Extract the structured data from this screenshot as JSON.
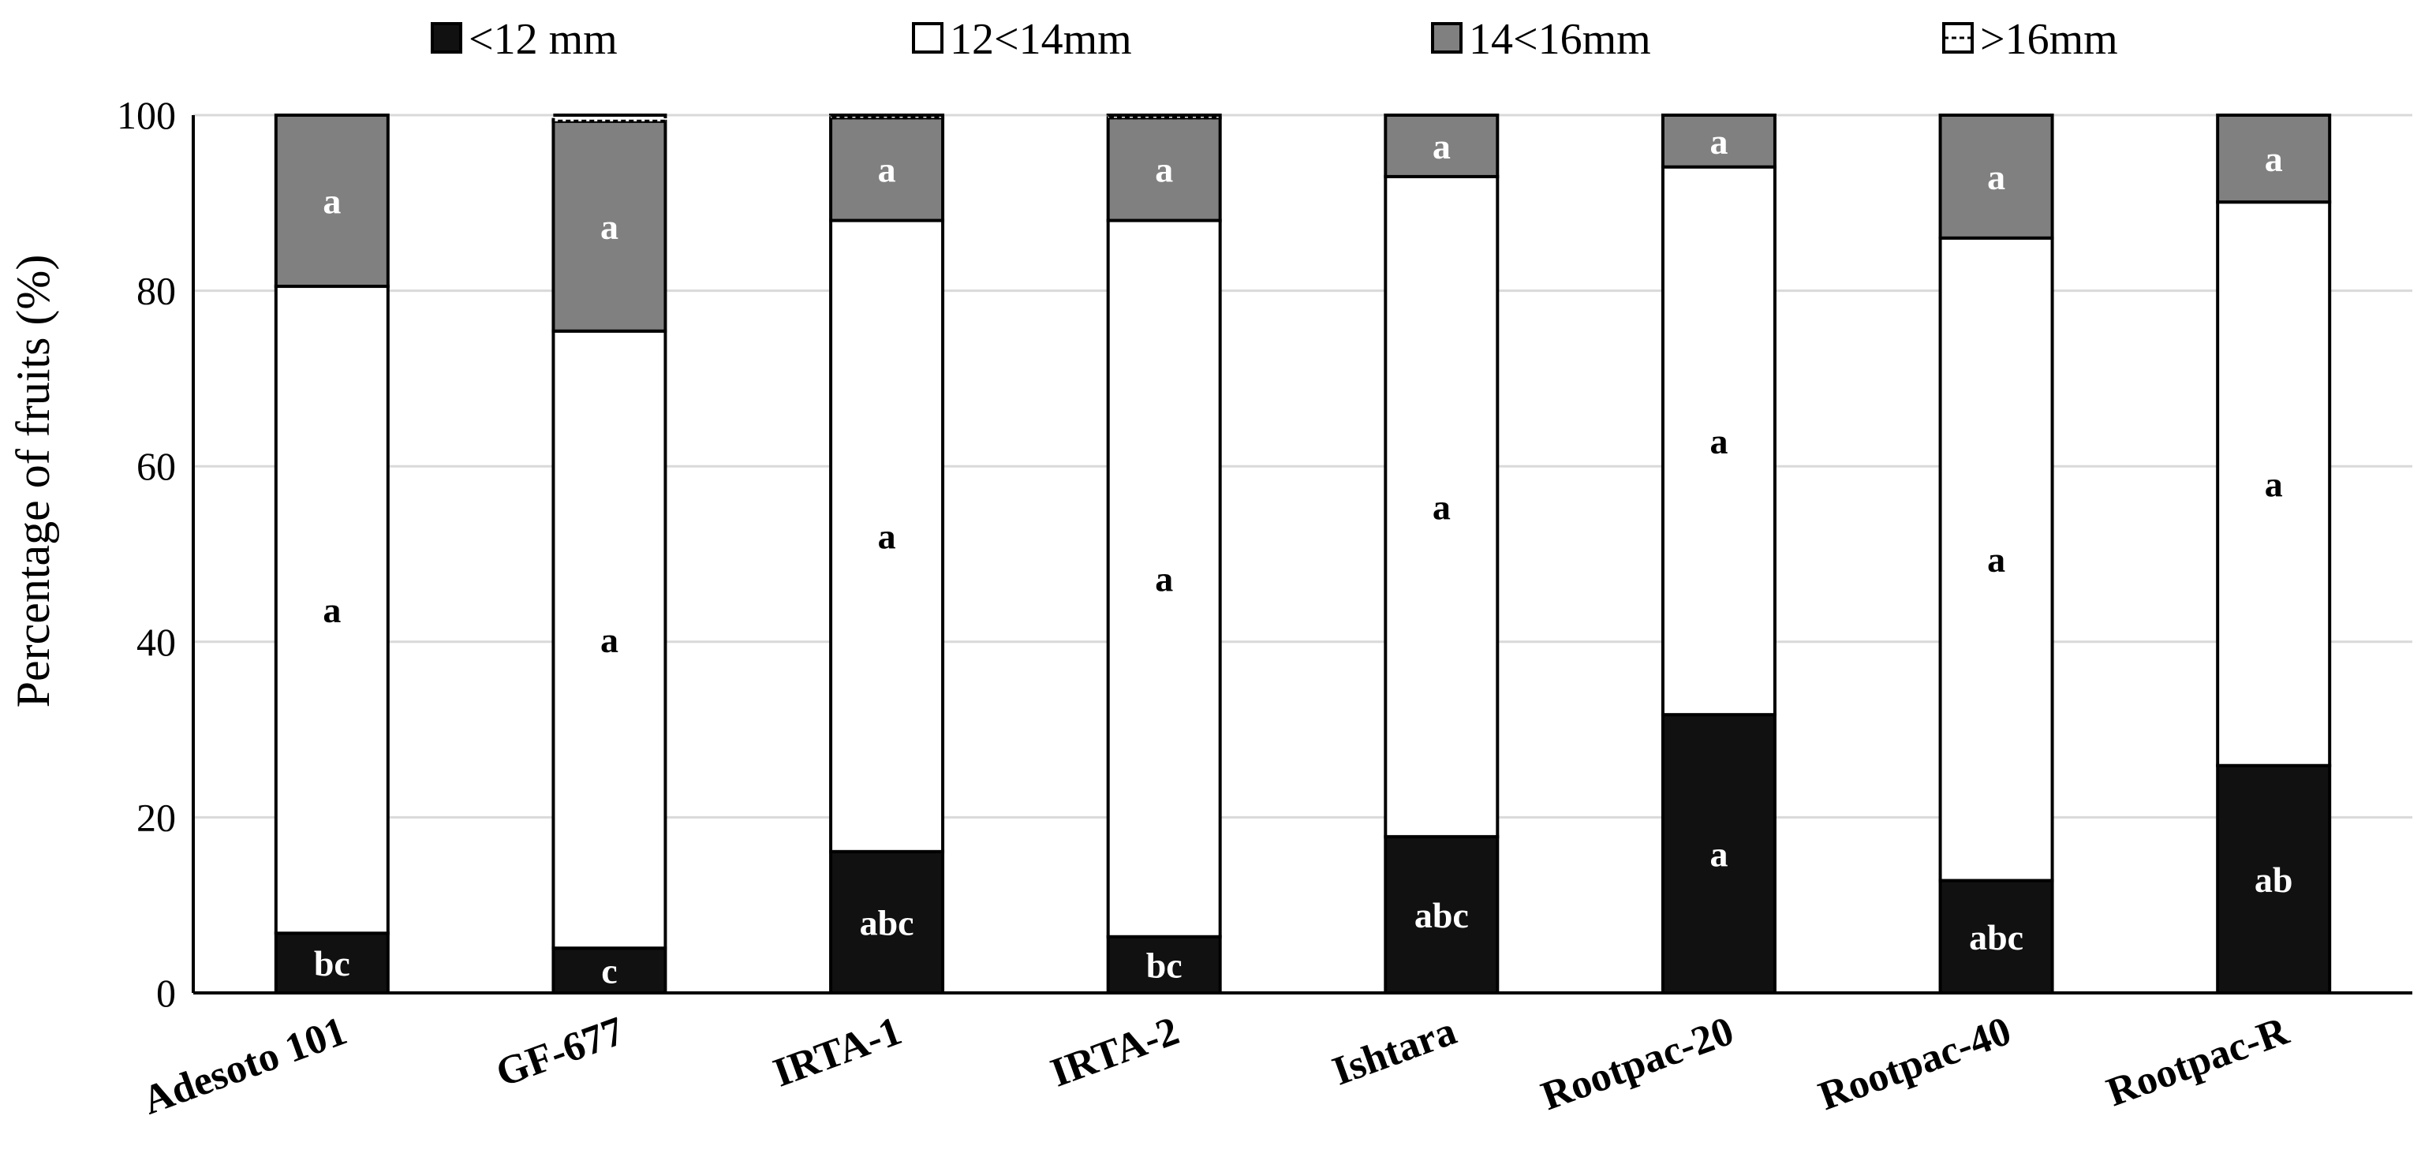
{
  "chart_data": {
    "type": "bar",
    "stacked": true,
    "ylabel": "Percentage of fruits (%)",
    "xlabel": "",
    "ylim": [
      0,
      100
    ],
    "yticks": [
      0,
      20,
      40,
      60,
      80,
      100
    ],
    "grid": true,
    "legend_position": "top",
    "categories": [
      "Adesoto 101",
      "GF-677",
      "IRTA-1",
      "IRTA-2",
      "Ishtara",
      "Rootpac-20",
      "Rootpac-40",
      "Rootpac-R"
    ],
    "series": [
      {
        "name": "<12 mm",
        "color": "#111111",
        "label_color": "#ffffff",
        "values": [
          6.8,
          5.1,
          16.1,
          6.4,
          17.8,
          31.7,
          12.8,
          25.9
        ],
        "labels": [
          "bc",
          "c",
          "abc",
          "bc",
          "abc",
          "a",
          "abc",
          "ab"
        ]
      },
      {
        "name": "12<14mm",
        "color": "#ffffff",
        "label_color": "#000000",
        "values": [
          73.7,
          70.3,
          71.9,
          81.6,
          75.2,
          62.4,
          73.2,
          64.2
        ],
        "labels": [
          "a",
          "a",
          "a",
          "a",
          "a",
          "a",
          "a",
          "a"
        ]
      },
      {
        "name": "14<16mm",
        "color": "#808080",
        "label_color": "#ffffff",
        "values": [
          19.5,
          23.9,
          11.7,
          11.7,
          7.0,
          5.9,
          14.0,
          9.9
        ],
        "labels": [
          "a",
          "a",
          "a",
          "a",
          "a",
          "a",
          "a",
          "a"
        ]
      },
      {
        "name": ">16mm",
        "color": "#ffffff",
        "label_color": "#000000",
        "dashed": true,
        "values": [
          0.0,
          0.7,
          0.3,
          0.3,
          0.0,
          0.0,
          0.0,
          0.0
        ],
        "labels": [
          "",
          "",
          "",
          "",
          "",
          "",
          "",
          ""
        ]
      }
    ]
  }
}
